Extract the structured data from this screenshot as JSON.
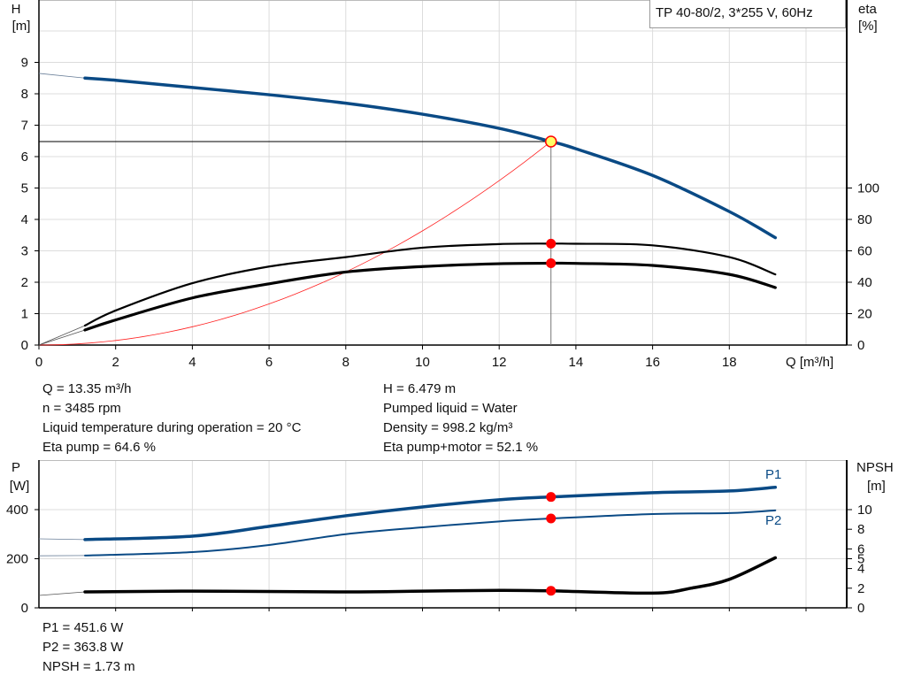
{
  "chart_data": [
    {
      "type": "line",
      "title": "TP 40-80/2, 3*255 V, 60Hz",
      "xlabel": "Q [m³/h]",
      "ylabel": [
        "H",
        "[m]"
      ],
      "y2label": [
        "eta",
        "[%]"
      ],
      "xlim": [
        0,
        21
      ],
      "ylim": [
        0,
        11
      ],
      "y2lim": [
        0,
        220
      ],
      "grid": true,
      "x_ticks": [
        "0",
        "2",
        "4",
        "6",
        "8",
        "10",
        "12",
        "14",
        "16",
        "18"
      ],
      "y_ticks": [
        "0",
        "1",
        "2",
        "3",
        "4",
        "5",
        "6",
        "7",
        "8",
        "9"
      ],
      "y2_ticks": [
        "0",
        "20",
        "40",
        "60",
        "80",
        "100"
      ],
      "series": [
        {
          "id": "H",
          "axis": "left",
          "color": "#0a4a85",
          "x": [
            1.2,
            2,
            4,
            6,
            8,
            10,
            12,
            13.35,
            14,
            16,
            18,
            19.2
          ],
          "y": [
            8.5,
            8.43,
            8.2,
            7.97,
            7.7,
            7.35,
            6.9,
            6.48,
            6.25,
            5.4,
            4.25,
            3.42
          ],
          "extension": {
            "x": [
              0,
              1.2
            ],
            "y": [
              8.65,
              8.5
            ]
          }
        },
        {
          "id": "eta_pump",
          "axis": "right",
          "color": "#000000",
          "x": [
            1.2,
            2,
            4,
            6,
            8,
            10,
            12,
            13.35,
            14,
            16,
            18,
            19.2
          ],
          "y": [
            12.4,
            22,
            39.4,
            50,
            56,
            62,
            64.3,
            64.6,
            64.5,
            63.5,
            56,
            45
          ],
          "extension": {
            "x": [
              0,
              1.2
            ],
            "y": [
              0,
              12.4
            ]
          }
        },
        {
          "id": "eta_pump_motor",
          "axis": "right",
          "color": "#000000",
          "x": [
            1.2,
            2,
            4,
            6,
            8,
            10,
            12,
            13.35,
            14,
            16,
            18,
            19.2
          ],
          "y": [
            9.6,
            16,
            30,
            39,
            46.5,
            50,
            51.8,
            52.1,
            52,
            50.7,
            45,
            36.6
          ],
          "extension": {
            "x": [
              0,
              1.2
            ],
            "y": [
              0,
              9.6
            ]
          }
        },
        {
          "id": "system_curve",
          "axis": "left",
          "color": "#ff2020",
          "x": [
            0,
            13.35
          ],
          "y": [
            0,
            6.479
          ],
          "shape": "parabola"
        }
      ],
      "operating_point": {
        "Q": 13.35,
        "H": 6.479,
        "eta_pump": 64.6,
        "eta_pump_motor": 52.1,
        "marker_color": "#ff0000",
        "h_marker_fill": "#ffff66"
      }
    },
    {
      "type": "line",
      "ylabel": [
        "P",
        "[W]"
      ],
      "y2label": [
        "NPSH",
        "[m]"
      ],
      "xlim": [
        0,
        21
      ],
      "ylim": [
        0,
        600
      ],
      "y2lim": [
        0,
        15
      ],
      "grid": true,
      "y_ticks": [
        "0",
        "200",
        "400"
      ],
      "y2_ticks": [
        "0",
        "2",
        "4",
        "5",
        "6",
        "8",
        "10"
      ],
      "series": [
        {
          "id": "P1",
          "name": "P1",
          "axis": "left",
          "color": "#0a4a85",
          "x": [
            1.2,
            4,
            6,
            8,
            10,
            12,
            13.35,
            16,
            18,
            19.2
          ],
          "y": [
            278,
            292,
            332,
            375,
            411,
            440,
            451.6,
            469,
            476,
            491
          ],
          "extension": {
            "x": [
              0,
              1.2
            ],
            "y": [
              281,
              278
            ]
          }
        },
        {
          "id": "P2",
          "name": "P2",
          "axis": "left",
          "color": "#0a4a85",
          "x": [
            1.2,
            4,
            6,
            8,
            10,
            12,
            13.35,
            16,
            18,
            19.2
          ],
          "y": [
            213,
            227,
            256,
            300,
            328,
            352,
            363.8,
            382,
            386,
            397
          ],
          "extension": {
            "x": [
              0,
              1.2
            ],
            "y": [
              212,
              213
            ]
          }
        },
        {
          "id": "NPSH",
          "axis": "right",
          "color": "#000000",
          "x": [
            1.2,
            4,
            8,
            10,
            12,
            13.35,
            16,
            17,
            18,
            19.2
          ],
          "y": [
            1.62,
            1.7,
            1.62,
            1.7,
            1.78,
            1.73,
            1.5,
            2.0,
            2.9,
            5.1
          ],
          "extension": {
            "x": [
              0,
              1.2
            ],
            "y": [
              1.26,
              1.62
            ]
          }
        }
      ],
      "operating_point": {
        "Q": 13.35,
        "P1": 451.6,
        "P2": 363.8,
        "NPSH": 1.73
      }
    }
  ],
  "info_top_left": [
    "Q = 13.35 m³/h",
    "n = 3485 rpm",
    "Liquid temperature during operation = 20 °C",
    "Eta pump = 64.6 %"
  ],
  "info_top_right": [
    "H = 6.479 m",
    "Pumped liquid = Water",
    "Density = 998.2 kg/m³",
    "Eta pump+motor = 52.1 %"
  ],
  "info_bottom": [
    "P1 = 451.6 W",
    "P2 = 363.8 W",
    "NPSH = 1.73 m"
  ]
}
